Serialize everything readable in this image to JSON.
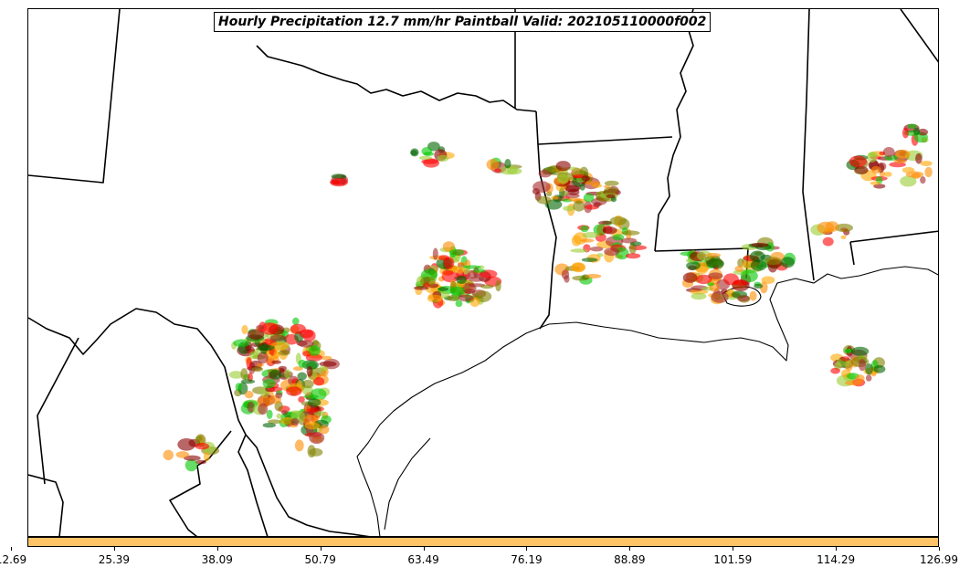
{
  "title": "Hourly Precipitation 12.7 mm/hr Paintball Valid: 202105110000f002",
  "colorbar": {
    "color": "#ffc466",
    "ticks": [
      "12.69",
      "25.39",
      "38.09",
      "50.79",
      "63.49",
      "76.19",
      "88.89",
      "101.59",
      "114.29",
      "126.99"
    ]
  },
  "member_colors": [
    "#ff0000",
    "#ff8c00",
    "#8b0000",
    "#00c800",
    "#808000",
    "#a52a2a",
    "#006400",
    "#ffa500",
    "#9acd32"
  ]
}
